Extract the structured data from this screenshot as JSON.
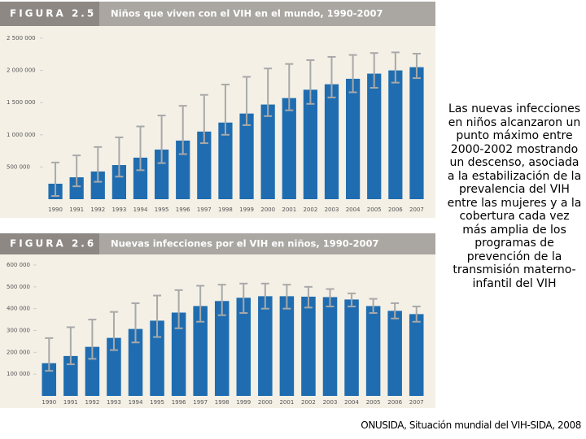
{
  "chart_data": [
    {
      "type": "bar",
      "figure_label": "FIGURA 2.5",
      "title": "Niños que viven con el VIH en el mundo, 1990-2007",
      "categories": [
        "1990",
        "1991",
        "1992",
        "1993",
        "1994",
        "1995",
        "1996",
        "1997",
        "1998",
        "1999",
        "2000",
        "2001",
        "2002",
        "2003",
        "2004",
        "2005",
        "2006",
        "2007"
      ],
      "values": [
        240000,
        340000,
        430000,
        530000,
        645000,
        770000,
        910000,
        1050000,
        1190000,
        1330000,
        1470000,
        1570000,
        1700000,
        1785000,
        1870000,
        1950000,
        2000000,
        2050000
      ],
      "error_low": [
        50000,
        200000,
        270000,
        350000,
        450000,
        560000,
        700000,
        870000,
        1000000,
        1150000,
        1290000,
        1380000,
        1480000,
        1580000,
        1660000,
        1730000,
        1810000,
        1880000
      ],
      "error_high": [
        570000,
        680000,
        810000,
        960000,
        1130000,
        1300000,
        1450000,
        1620000,
        1780000,
        1900000,
        2030000,
        2100000,
        2160000,
        2210000,
        2240000,
        2270000,
        2280000,
        2260000
      ],
      "ylim": [
        0,
        2500000
      ],
      "yticks": [
        {
          "value": 500000,
          "label": "500 000"
        },
        {
          "value": 1000000,
          "label": "1 000 000"
        },
        {
          "value": 1500000,
          "label": "1 500 000"
        },
        {
          "value": 2000000,
          "label": "2 000 000"
        },
        {
          "value": 2500000,
          "label": "2 500 000"
        }
      ],
      "color": "#1f6db0",
      "error_color": "#a9a9a9"
    },
    {
      "type": "bar",
      "figure_label": "FIGURA 2.6",
      "title": "Nuevas infecciones por el VIH en niños, 1990-2007",
      "categories": [
        "1990",
        "1991",
        "1992",
        "1993",
        "1994",
        "1995",
        "1996",
        "1997",
        "1998",
        "1999",
        "2000",
        "2001",
        "2002",
        "2003",
        "2004",
        "2005",
        "2006",
        "2007"
      ],
      "values": [
        150000,
        183000,
        225000,
        266000,
        307000,
        345000,
        382000,
        412000,
        435000,
        450000,
        457000,
        457000,
        455000,
        453000,
        442000,
        412000,
        390000,
        375000
      ],
      "error_low": [
        115000,
        145000,
        170000,
        210000,
        245000,
        270000,
        310000,
        340000,
        370000,
        380000,
        400000,
        400000,
        405000,
        410000,
        410000,
        380000,
        355000,
        340000
      ],
      "error_high": [
        265000,
        315000,
        350000,
        385000,
        425000,
        460000,
        485000,
        505000,
        510000,
        515000,
        515000,
        510000,
        500000,
        490000,
        470000,
        445000,
        425000,
        410000
      ],
      "ylim": [
        0,
        600000
      ],
      "yticks": [
        {
          "value": 100000,
          "label": "100 000"
        },
        {
          "value": 200000,
          "label": "200 000"
        },
        {
          "value": 300000,
          "label": "300 000"
        },
        {
          "value": 400000,
          "label": "400 000"
        },
        {
          "value": 500000,
          "label": "500 000"
        },
        {
          "value": 600000,
          "label": "600 000"
        }
      ],
      "color": "#1f6db0",
      "error_color": "#a9a9a9"
    }
  ],
  "side_text": "Las nuevas infecciones en niños alcanzaron un punto máximo entre 2000-2002 mostrando un descenso, asociada a la estabilización de la prevalencia del VIH entre las mujeres y a la cobertura cada vez más amplia de los programas de prevención de la transmisión materno-infantil del VIH",
  "source": "ONUSIDA, Situación mundial del VIH-SIDA, 2008"
}
